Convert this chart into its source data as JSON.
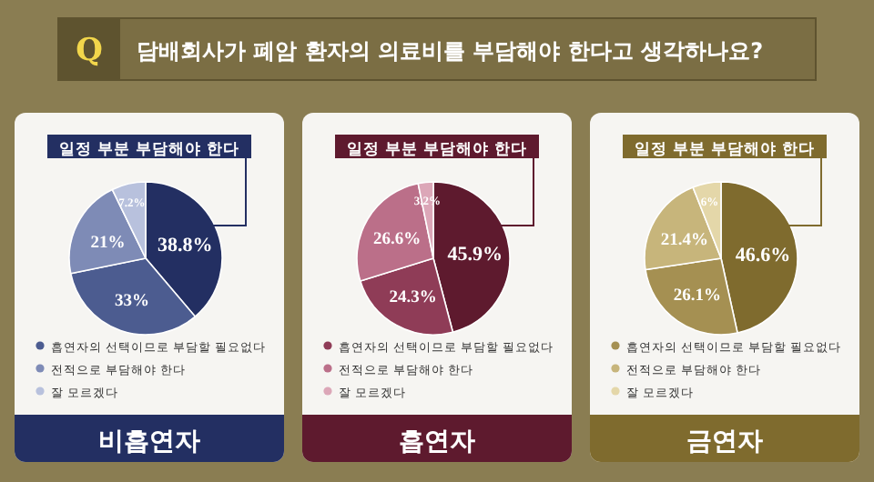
{
  "chart_data": [
    {
      "type": "pie",
      "title": "비흡연자",
      "annotations": [
        "Q",
        "담배회사가 폐암 환자의 의료비를 부담해야 한다고 생각하나요?"
      ],
      "categories": [
        "일정 부분 부담해야 한다",
        "흡연자의 선택이므로 부담할 필요없다",
        "전적으로 부담해야 한다",
        "잘 모르겠다"
      ],
      "values": [
        38.8,
        33,
        21,
        7.2
      ],
      "value_labels": [
        "38.8%",
        "33%",
        "21%",
        "7.2%"
      ],
      "colors": [
        "#232f62",
        "#4c5c90",
        "#7e8bb6",
        "#b8c1dd"
      ],
      "legend": "bottom"
    },
    {
      "type": "pie",
      "title": "흡연자",
      "categories": [
        "일정 부분 부담해야 한다",
        "흡연자의 선택이므로 부담할 필요없다",
        "전적으로 부담해야 한다",
        "잘 모르겠다"
      ],
      "values": [
        45.9,
        24.3,
        26.6,
        3.2
      ],
      "value_labels": [
        "45.9%",
        "24.3%",
        "26.6%",
        "3.2%"
      ],
      "colors": [
        "#5e1a2e",
        "#8f3c57",
        "#bb6f89",
        "#dca7b8"
      ],
      "legend": "bottom"
    },
    {
      "type": "pie",
      "title": "금연자",
      "categories": [
        "일정 부분 부담해야 한다",
        "흡연자의 선택이므로 부담할 필요없다",
        "전적으로 부담해야 한다",
        "잘 모르겠다"
      ],
      "values": [
        46.6,
        26.1,
        21.4,
        6
      ],
      "value_labels": [
        "46.6%",
        "26.1%",
        "21.4%",
        "6%"
      ],
      "colors": [
        "#7f6b2e",
        "#a59052",
        "#c7b57b",
        "#e4d7a9"
      ],
      "legend": "bottom"
    }
  ]
}
